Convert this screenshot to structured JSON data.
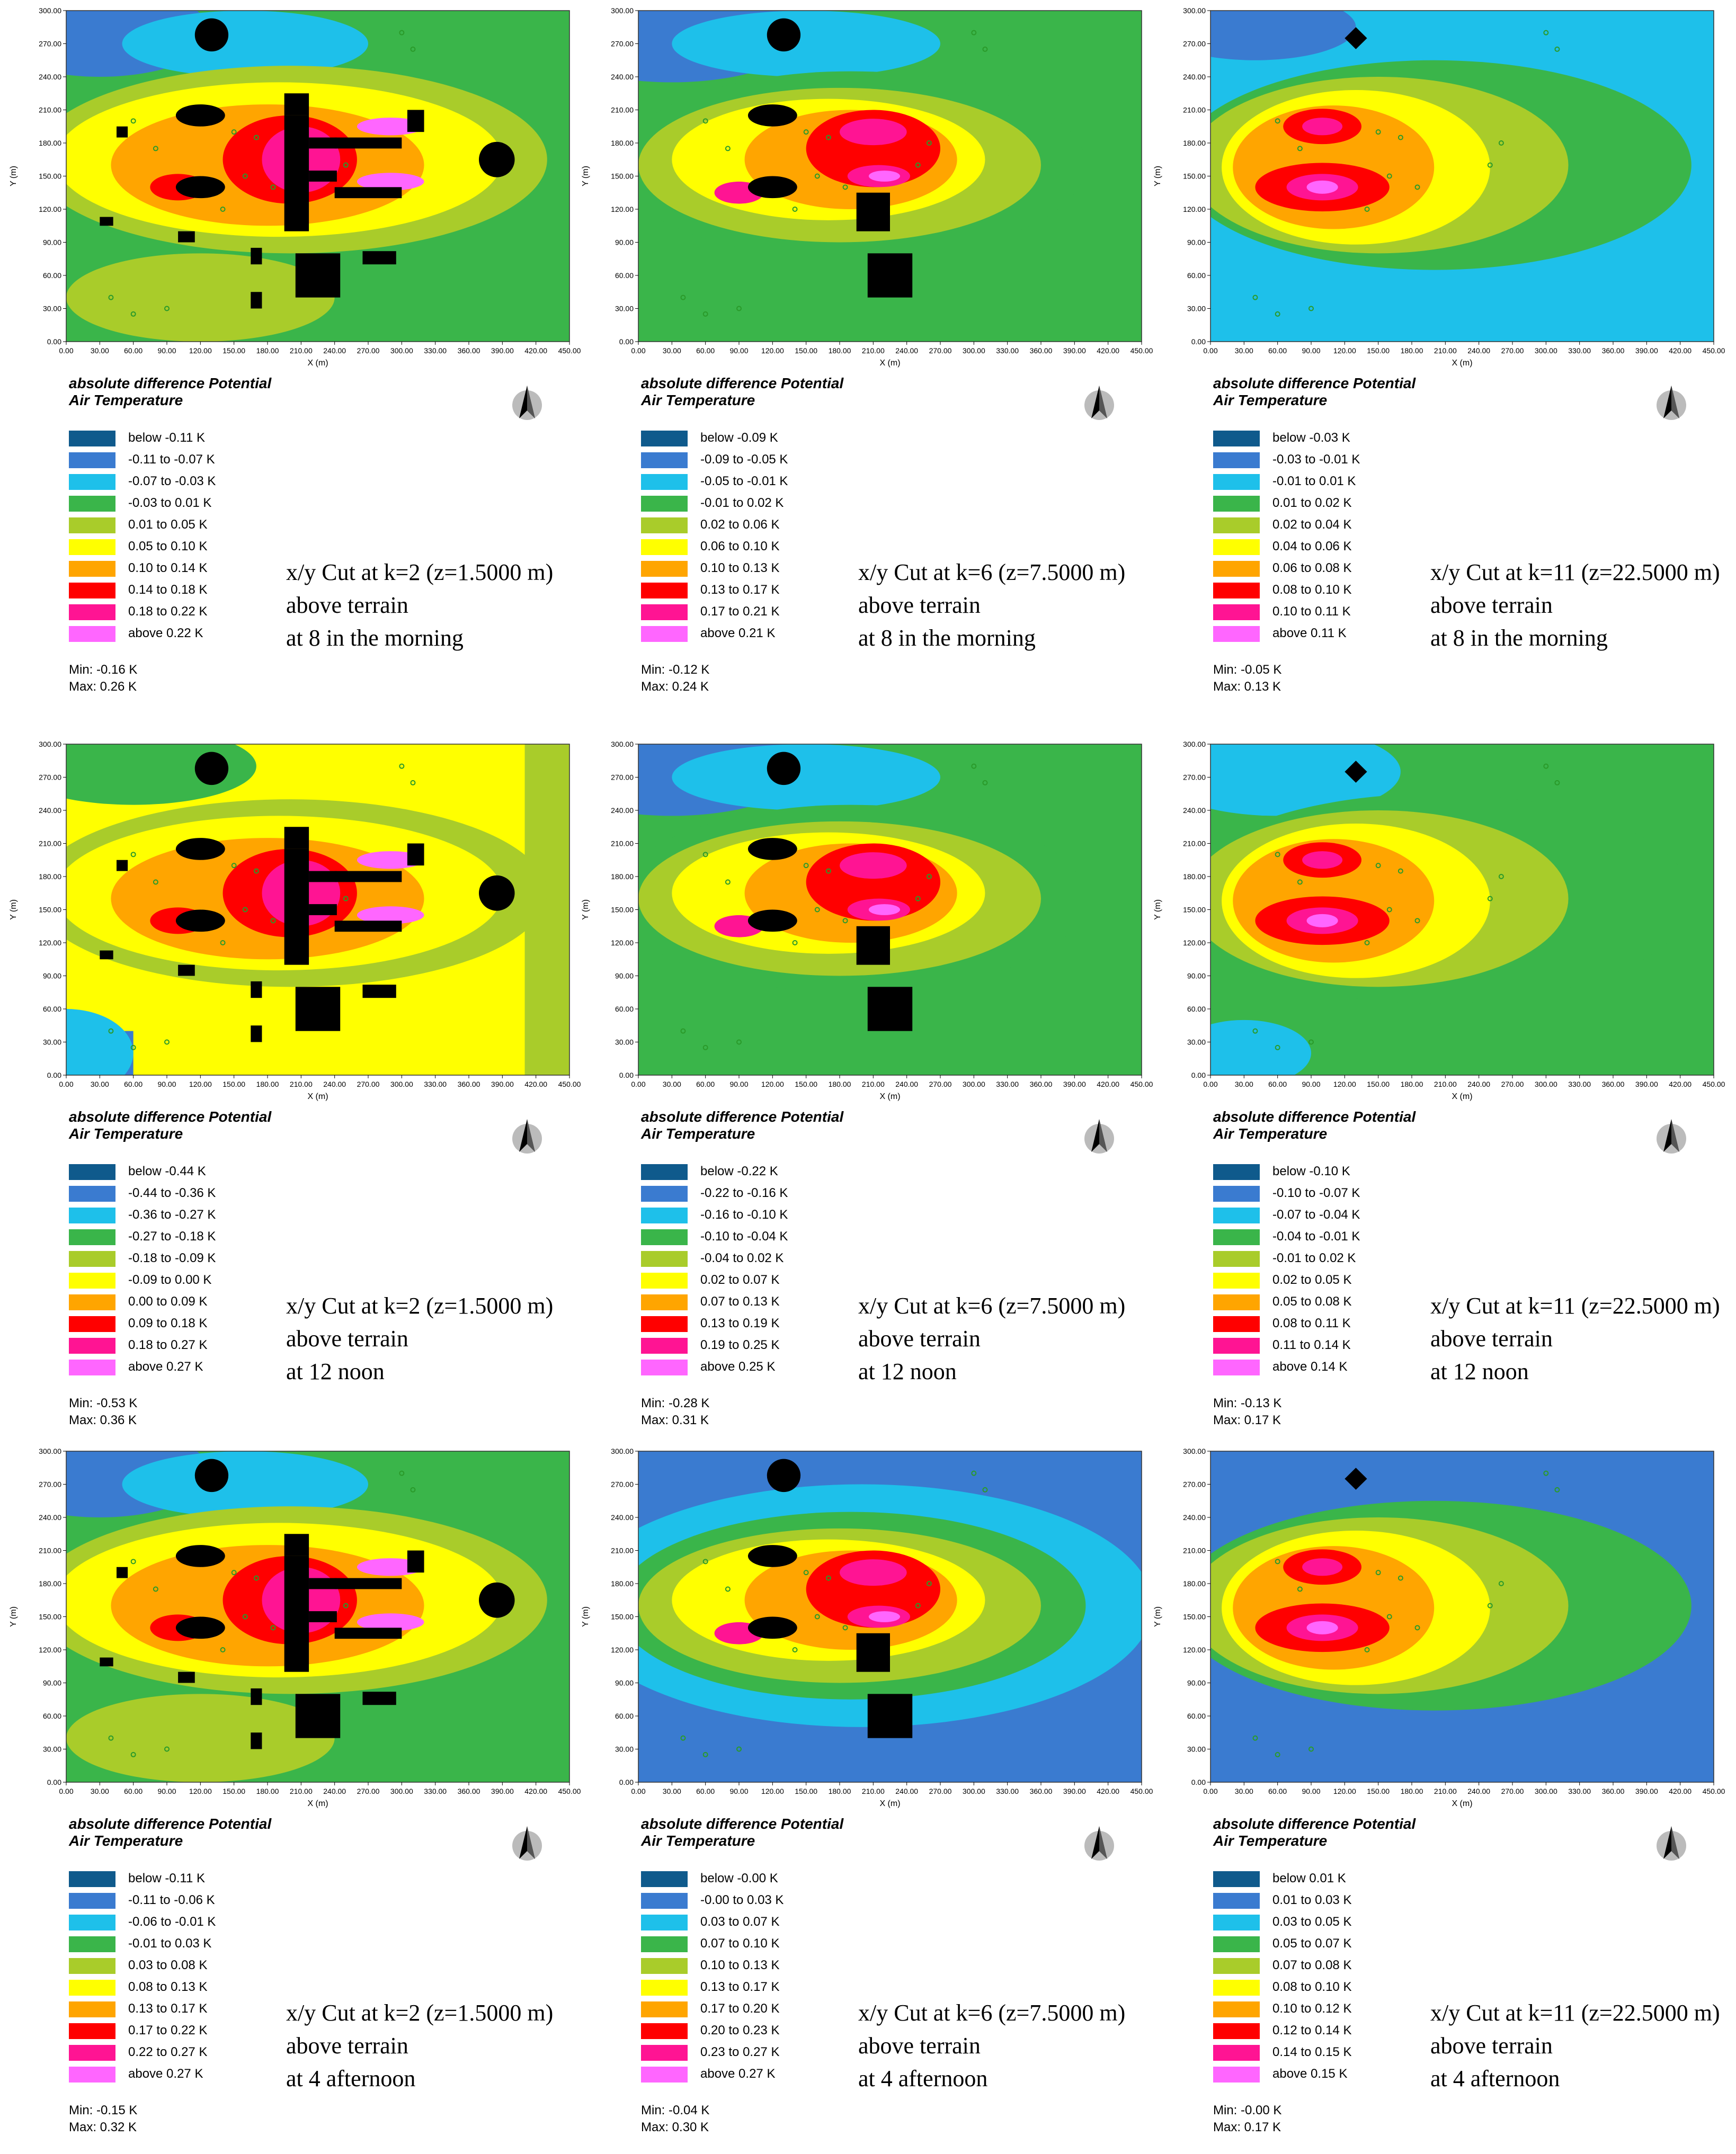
{
  "legend_colors": [
    "#0f5a8c",
    "#3a7bd0",
    "#1ec0ea",
    "#3ab54a",
    "#a9cc2a",
    "#ffff00",
    "#ffa500",
    "#ff0000",
    "#ff1493",
    "#ff66ff"
  ],
  "building_color": "#000000",
  "vegetation_color": "#2a9a2a",
  "chart_data": [
    {
      "type": "heatmap",
      "xlabel": "X (m)",
      "ylabel": "Y (m)",
      "xlim": [
        0,
        450
      ],
      "ylim": [
        0,
        300
      ],
      "x_ticks": [
        "0.00",
        "30.00",
        "60.00",
        "90.00",
        "120.00",
        "150.00",
        "180.00",
        "210.00",
        "240.00",
        "270.00",
        "300.00",
        "330.00",
        "360.00",
        "390.00",
        "420.00",
        "450.00"
      ],
      "y_ticks": [
        "0.00",
        "30.00",
        "60.00",
        "90.00",
        "120.00",
        "150.00",
        "180.00",
        "210.00",
        "240.00",
        "270.00",
        "300.00"
      ],
      "legend_title_1": "absolute difference Potential",
      "legend_title_2": "Air Temperature",
      "legend": [
        "below -0.11 K",
        "-0.11 to -0.07 K",
        "-0.07 to -0.03 K",
        "-0.03 to 0.01 K",
        "0.01 to 0.05 K",
        "0.05 to 0.10 K",
        "0.10 to 0.14 K",
        "0.14 to 0.18 K",
        "0.18 to 0.22 K",
        "above 0.22 K"
      ],
      "min": "Min: -0.16 K",
      "max": "Max: 0.26 K",
      "cut_line1": "x/y Cut at k=2 (z=1.5000 m)",
      "cut_line2": "above terrain",
      "cut_line3": "at 8 in the morning"
    },
    {
      "type": "heatmap",
      "xlabel": "X (m)",
      "ylabel": "Y (m)",
      "xlim": [
        0,
        450
      ],
      "ylim": [
        0,
        300
      ],
      "x_ticks": [
        "0.00",
        "30.00",
        "60.00",
        "90.00",
        "120.00",
        "150.00",
        "180.00",
        "210.00",
        "240.00",
        "270.00",
        "300.00",
        "330.00",
        "360.00",
        "390.00",
        "420.00",
        "450.00"
      ],
      "y_ticks": [
        "0.00",
        "30.00",
        "60.00",
        "90.00",
        "120.00",
        "150.00",
        "180.00",
        "210.00",
        "240.00",
        "270.00",
        "300.00"
      ],
      "legend_title_1": "absolute difference Potential",
      "legend_title_2": "Air Temperature",
      "legend": [
        "below -0.09 K",
        "-0.09 to -0.05 K",
        "-0.05 to -0.01 K",
        "-0.01 to 0.02 K",
        "0.02 to 0.06 K",
        "0.06 to 0.10 K",
        "0.10 to 0.13 K",
        "0.13 to 0.17 K",
        "0.17 to 0.21 K",
        "above 0.21 K"
      ],
      "min": "Min: -0.12 K",
      "max": "Max: 0.24 K",
      "cut_line1": "x/y Cut at k=6 (z=7.5000 m)",
      "cut_line2": "above terrain",
      "cut_line3": "at 8 in the morning"
    },
    {
      "type": "heatmap",
      "xlabel": "X (m)",
      "ylabel": "Y (m)",
      "xlim": [
        0,
        450
      ],
      "ylim": [
        0,
        300
      ],
      "x_ticks": [
        "0.00",
        "30.00",
        "60.00",
        "90.00",
        "120.00",
        "150.00",
        "180.00",
        "210.00",
        "240.00",
        "270.00",
        "300.00",
        "330.00",
        "360.00",
        "390.00",
        "420.00",
        "450.00"
      ],
      "y_ticks": [
        "0.00",
        "30.00",
        "60.00",
        "90.00",
        "120.00",
        "150.00",
        "180.00",
        "210.00",
        "240.00",
        "270.00",
        "300.00"
      ],
      "legend_title_1": "absolute difference Potential",
      "legend_title_2": "Air Temperature",
      "legend": [
        "below -0.03 K",
        "-0.03 to -0.01 K",
        "-0.01 to 0.01 K",
        "0.01 to 0.02 K",
        "0.02 to 0.04 K",
        "0.04 to 0.06 K",
        "0.06 to 0.08 K",
        "0.08 to 0.10 K",
        "0.10 to 0.11 K",
        "above 0.11 K"
      ],
      "min": "Min: -0.05 K",
      "max": "Max: 0.13 K",
      "cut_line1": "x/y Cut at k=11 (z=22.5000 m)",
      "cut_line2": "above terrain",
      "cut_line3": "at 8 in the morning"
    },
    {
      "type": "heatmap",
      "xlabel": "X (m)",
      "ylabel": "Y (m)",
      "xlim": [
        0,
        450
      ],
      "ylim": [
        0,
        300
      ],
      "x_ticks": [
        "0.00",
        "30.00",
        "60.00",
        "90.00",
        "120.00",
        "150.00",
        "180.00",
        "210.00",
        "240.00",
        "270.00",
        "300.00",
        "330.00",
        "360.00",
        "390.00",
        "420.00",
        "450.00"
      ],
      "y_ticks": [
        "0.00",
        "30.00",
        "60.00",
        "90.00",
        "120.00",
        "150.00",
        "180.00",
        "210.00",
        "240.00",
        "270.00",
        "300.00"
      ],
      "legend_title_1": "absolute difference Potential",
      "legend_title_2": "Air Temperature",
      "legend": [
        "below -0.44 K",
        "-0.44 to -0.36 K",
        "-0.36 to -0.27 K",
        "-0.27 to -0.18 K",
        "-0.18 to -0.09 K",
        "-0.09 to 0.00 K",
        "0.00 to 0.09 K",
        "0.09 to 0.18 K",
        "0.18 to 0.27 K",
        "above 0.27 K"
      ],
      "min": "Min: -0.53 K",
      "max": "Max: 0.36 K",
      "cut_line1": "x/y Cut at k=2 (z=1.5000 m)",
      "cut_line2": "above terrain",
      "cut_line3": "at 12 noon"
    },
    {
      "type": "heatmap",
      "xlabel": "X (m)",
      "ylabel": "Y (m)",
      "xlim": [
        0,
        450
      ],
      "ylim": [
        0,
        300
      ],
      "x_ticks": [
        "0.00",
        "30.00",
        "60.00",
        "90.00",
        "120.00",
        "150.00",
        "180.00",
        "210.00",
        "240.00",
        "270.00",
        "300.00",
        "330.00",
        "360.00",
        "390.00",
        "420.00",
        "450.00"
      ],
      "y_ticks": [
        "0.00",
        "30.00",
        "60.00",
        "90.00",
        "120.00",
        "150.00",
        "180.00",
        "210.00",
        "240.00",
        "270.00",
        "300.00"
      ],
      "legend_title_1": "absolute difference Potential",
      "legend_title_2": "Air Temperature",
      "legend": [
        "below -0.22 K",
        "-0.22 to -0.16 K",
        "-0.16 to -0.10 K",
        "-0.10 to -0.04 K",
        "-0.04 to 0.02 K",
        "0.02 to 0.07 K",
        "0.07 to 0.13 K",
        "0.13 to 0.19 K",
        "0.19 to 0.25 K",
        "above 0.25 K"
      ],
      "min": "Min: -0.28 K",
      "max": "Max: 0.31 K",
      "cut_line1": "x/y Cut at k=6 (z=7.5000 m)",
      "cut_line2": "above terrain",
      "cut_line3": "at 12 noon"
    },
    {
      "type": "heatmap",
      "xlabel": "X (m)",
      "ylabel": "Y (m)",
      "xlim": [
        0,
        450
      ],
      "ylim": [
        0,
        300
      ],
      "x_ticks": [
        "0.00",
        "30.00",
        "60.00",
        "90.00",
        "120.00",
        "150.00",
        "180.00",
        "210.00",
        "240.00",
        "270.00",
        "300.00",
        "330.00",
        "360.00",
        "390.00",
        "420.00",
        "450.00"
      ],
      "y_ticks": [
        "0.00",
        "30.00",
        "60.00",
        "90.00",
        "120.00",
        "150.00",
        "180.00",
        "210.00",
        "240.00",
        "270.00",
        "300.00"
      ],
      "legend_title_1": "absolute difference Potential",
      "legend_title_2": "Air Temperature",
      "legend": [
        "below -0.10 K",
        "-0.10 to -0.07 K",
        "-0.07 to -0.04 K",
        "-0.04 to -0.01 K",
        "-0.01 to 0.02 K",
        "0.02 to 0.05 K",
        "0.05 to 0.08 K",
        "0.08 to 0.11 K",
        "0.11 to 0.14 K",
        "above 0.14 K"
      ],
      "min": "Min: -0.13 K",
      "max": "Max: 0.17 K",
      "cut_line1": "x/y Cut at k=11 (z=22.5000 m)",
      "cut_line2": "above terrain",
      "cut_line3": "at 12 noon"
    },
    {
      "type": "heatmap",
      "xlabel": "X (m)",
      "ylabel": "Y (m)",
      "xlim": [
        0,
        450
      ],
      "ylim": [
        0,
        300
      ],
      "x_ticks": [
        "0.00",
        "30.00",
        "60.00",
        "90.00",
        "120.00",
        "150.00",
        "180.00",
        "210.00",
        "240.00",
        "270.00",
        "300.00",
        "330.00",
        "360.00",
        "390.00",
        "420.00",
        "450.00"
      ],
      "y_ticks": [
        "0.00",
        "30.00",
        "60.00",
        "90.00",
        "120.00",
        "150.00",
        "180.00",
        "210.00",
        "240.00",
        "270.00",
        "300.00"
      ],
      "legend_title_1": "absolute difference Potential",
      "legend_title_2": "Air Temperature",
      "legend": [
        "below -0.11 K",
        "-0.11 to -0.06 K",
        "-0.06 to -0.01 K",
        "-0.01 to 0.03 K",
        "0.03 to 0.08 K",
        "0.08 to 0.13 K",
        "0.13 to 0.17 K",
        "0.17 to 0.22 K",
        "0.22 to 0.27 K",
        "above 0.27 K"
      ],
      "min": "Min: -0.15 K",
      "max": "Max: 0.32 K",
      "cut_line1": "x/y Cut at k=2 (z=1.5000 m)",
      "cut_line2": "above terrain",
      "cut_line3": "at 4 afternoon"
    },
    {
      "type": "heatmap",
      "xlabel": "X (m)",
      "ylabel": "Y (m)",
      "xlim": [
        0,
        450
      ],
      "ylim": [
        0,
        300
      ],
      "x_ticks": [
        "0.00",
        "30.00",
        "60.00",
        "90.00",
        "120.00",
        "150.00",
        "180.00",
        "210.00",
        "240.00",
        "270.00",
        "300.00",
        "330.00",
        "360.00",
        "390.00",
        "420.00",
        "450.00"
      ],
      "y_ticks": [
        "0.00",
        "30.00",
        "60.00",
        "90.00",
        "120.00",
        "150.00",
        "180.00",
        "210.00",
        "240.00",
        "270.00",
        "300.00"
      ],
      "legend_title_1": "absolute difference Potential",
      "legend_title_2": "Air Temperature",
      "legend": [
        "below -0.00 K",
        "-0.00 to 0.03 K",
        "0.03 to 0.07 K",
        "0.07 to 0.10 K",
        "0.10 to 0.13 K",
        "0.13 to 0.17 K",
        "0.17 to 0.20 K",
        "0.20 to 0.23 K",
        "0.23 to 0.27 K",
        "above 0.27 K"
      ],
      "min": "Min: -0.04 K",
      "max": "Max: 0.30 K",
      "cut_line1": "x/y Cut at k=6 (z=7.5000 m)",
      "cut_line2": "above terrain",
      "cut_line3": "at 4 afternoon"
    },
    {
      "type": "heatmap",
      "xlabel": "X (m)",
      "ylabel": "Y (m)",
      "xlim": [
        0,
        450
      ],
      "ylim": [
        0,
        300
      ],
      "x_ticks": [
        "0.00",
        "30.00",
        "60.00",
        "90.00",
        "120.00",
        "150.00",
        "180.00",
        "210.00",
        "240.00",
        "270.00",
        "300.00",
        "330.00",
        "360.00",
        "390.00",
        "420.00",
        "450.00"
      ],
      "y_ticks": [
        "0.00",
        "30.00",
        "60.00",
        "90.00",
        "120.00",
        "150.00",
        "180.00",
        "210.00",
        "240.00",
        "270.00",
        "300.00"
      ],
      "legend_title_1": "absolute difference Potential",
      "legend_title_2": "Air Temperature",
      "legend": [
        "below 0.01 K",
        "0.01 to 0.03 K",
        "0.03 to 0.05 K",
        "0.05 to 0.07 K",
        "0.07 to 0.08 K",
        "0.08 to 0.10 K",
        "0.10 to 0.12 K",
        "0.12 to 0.14 K",
        "0.14 to 0.15 K",
        "above 0.15 K"
      ],
      "min": "Min: -0.00 K",
      "max": "Max: 0.17 K",
      "cut_line1": "x/y Cut at k=11 (z=22.5000 m)",
      "cut_line2": "above terrain",
      "cut_line3": "at 4 afternoon"
    }
  ]
}
